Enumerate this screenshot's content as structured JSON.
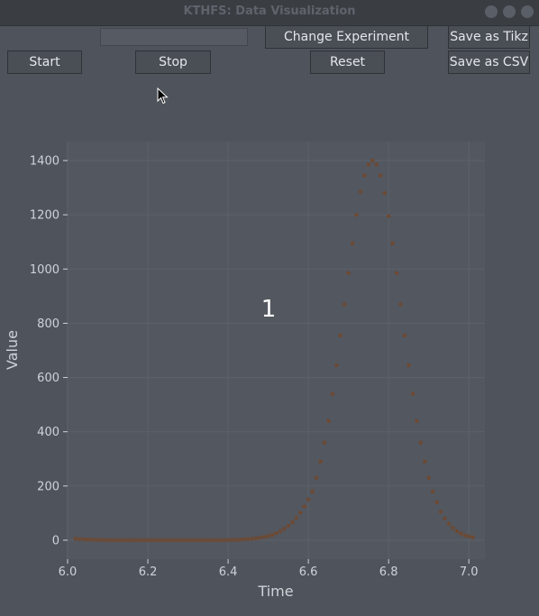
{
  "window": {
    "title": "KTHFS: Data Visualization"
  },
  "toolbar": {
    "experiment_name_value": "",
    "change_name_label": "Change Experiment Name",
    "save_tikz_label": "Save as Tikz",
    "start_label": "Start",
    "stop_label": "Stop",
    "reset_label": "Reset",
    "save_csv_label": "Save as CSV"
  },
  "icons": {
    "cursor": "mouse-pointer-icon",
    "minimize": "minimize-icon",
    "maximize": "maximize-icon",
    "close": "close-icon"
  },
  "colors": {
    "background": "#4f535b",
    "plot_area": "#53575f",
    "marker": "#6b4a36",
    "text": "#cfd3d8"
  },
  "chart_data": {
    "type": "scatter",
    "overlay_label": "1",
    "xlabel": "Time",
    "ylabel": "Value",
    "xlim": [
      6.0,
      7.04
    ],
    "ylim": [
      -70,
      1470
    ],
    "xticks": [
      6.0,
      6.2,
      6.4,
      6.6,
      6.8,
      7.0
    ],
    "xtick_labels": [
      "6.0",
      "6.2",
      "6.4",
      "6.6",
      "6.8",
      "7.0"
    ],
    "yticks": [
      0,
      200,
      400,
      600,
      800,
      1000,
      1200,
      1400
    ],
    "ytick_labels": [
      "0",
      "200",
      "400",
      "600",
      "800",
      "1000",
      "1200",
      "1400"
    ],
    "grid": true,
    "x": [
      6.02,
      6.03,
      6.04,
      6.05,
      6.06,
      6.07,
      6.08,
      6.09,
      6.1,
      6.11,
      6.12,
      6.13,
      6.14,
      6.15,
      6.16,
      6.17,
      6.18,
      6.19,
      6.2,
      6.21,
      6.22,
      6.23,
      6.24,
      6.25,
      6.26,
      6.27,
      6.28,
      6.29,
      6.3,
      6.31,
      6.32,
      6.33,
      6.34,
      6.35,
      6.36,
      6.37,
      6.38,
      6.39,
      6.4,
      6.41,
      6.42,
      6.43,
      6.44,
      6.45,
      6.46,
      6.47,
      6.48,
      6.49,
      6.5,
      6.51,
      6.52,
      6.53,
      6.54,
      6.55,
      6.56,
      6.57,
      6.58,
      6.59,
      6.6,
      6.61,
      6.62,
      6.63,
      6.64,
      6.65,
      6.66,
      6.67,
      6.68,
      6.69,
      6.7,
      6.71,
      6.72,
      6.73,
      6.74,
      6.75,
      6.76,
      6.77,
      6.78,
      6.79,
      6.8,
      6.81,
      6.82,
      6.83,
      6.84,
      6.85,
      6.86,
      6.87,
      6.88,
      6.89,
      6.9,
      6.91,
      6.92,
      6.93,
      6.94,
      6.95,
      6.96,
      6.97,
      6.98,
      6.99,
      7.0,
      7.01
    ],
    "y": [
      5,
      4,
      3,
      2,
      2,
      1,
      1,
      1,
      0,
      0,
      0,
      0,
      0,
      0,
      0,
      0,
      0,
      0,
      0,
      0,
      0,
      0,
      0,
      0,
      0,
      0,
      0,
      0,
      0,
      0,
      0,
      0,
      0,
      0,
      0,
      0,
      0,
      0,
      1,
      1,
      1,
      2,
      3,
      4,
      5,
      7,
      9,
      12,
      15,
      20,
      26,
      33,
      42,
      53,
      66,
      82,
      101,
      124,
      150,
      180,
      230,
      290,
      360,
      440,
      540,
      645,
      755,
      870,
      985,
      1095,
      1200,
      1285,
      1345,
      1385,
      1400,
      1385,
      1345,
      1280,
      1195,
      1095,
      985,
      870,
      755,
      645,
      540,
      440,
      360,
      290,
      230,
      180,
      140,
      105,
      80,
      60,
      45,
      33,
      25,
      18,
      14,
      10
    ]
  }
}
